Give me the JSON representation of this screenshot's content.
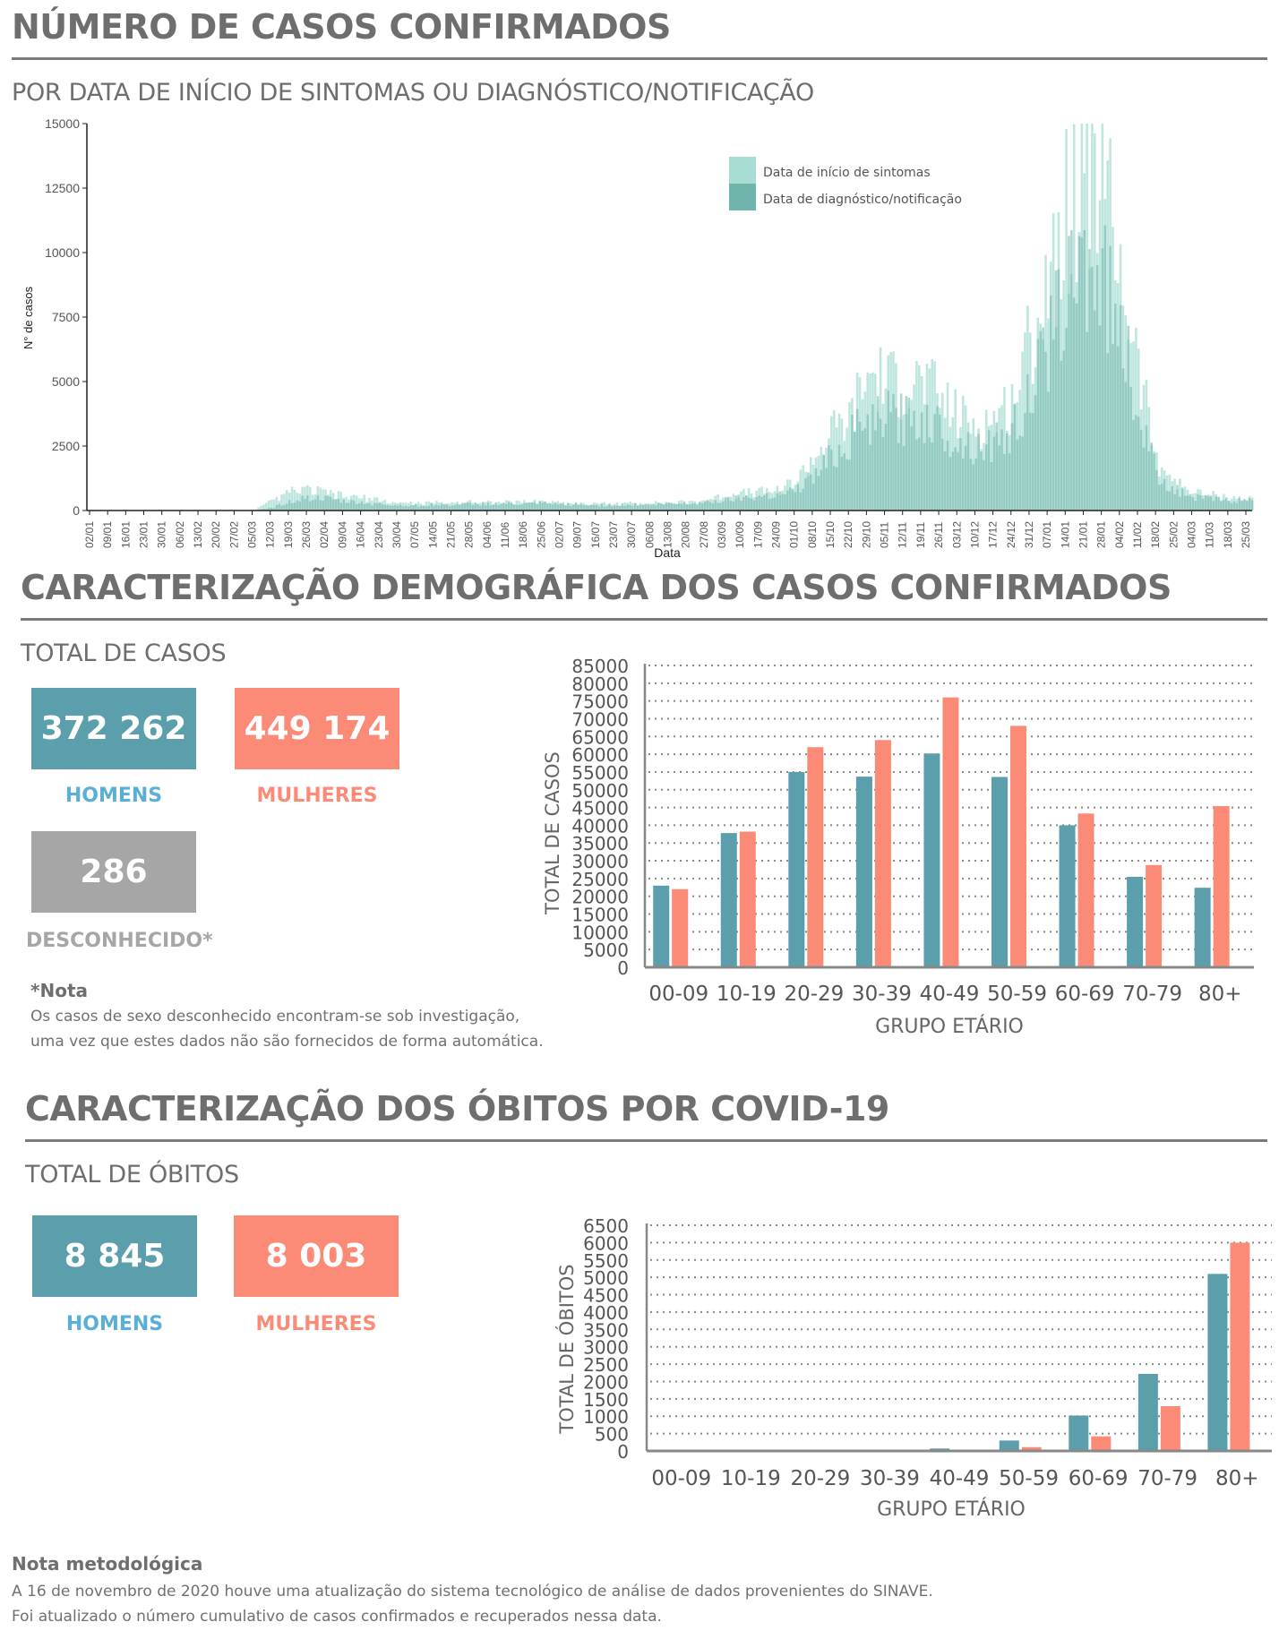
{
  "colors": {
    "men": "#5a9fab",
    "women": "#fb8a77",
    "unknown": "#a6a6a6",
    "men_label": "#5aafd6",
    "women_label": "#fb8a77",
    "symptom_onset": "#a8ddd4",
    "diagnosis": "#6fb5ab"
  },
  "section1": {
    "title": "NÚMERO DE CASOS CONFIRMADOS",
    "subtitle": "POR DATA DE INÍCIO DE SINTOMAS OU DIAGNÓSTICO/NOTIFICAÇÃO"
  },
  "section2": {
    "title": "CARACTERIZAÇÃO DEMOGRÁFICA DOS CASOS CONFIRMADOS",
    "subtitle": "TOTAL DE CASOS",
    "men_value": "372 262",
    "men_label": "HOMENS",
    "women_value": "449 174",
    "women_label": "MULHERES",
    "unknown_value": "286",
    "unknown_label": "DESCONHECIDO*",
    "note_title": "*Nota",
    "note_line1": "Os casos de sexo desconhecido encontram-se sob investigação,",
    "note_line2": "uma vez que estes dados não são fornecidos de forma automática."
  },
  "section3": {
    "title": "CARACTERIZAÇÃO DOS ÓBITOS POR COVID-19",
    "subtitle": "TOTAL DE ÓBITOS",
    "men_value": "8 845",
    "men_label": "HOMENS",
    "women_value": "8 003",
    "women_label": "MULHERES"
  },
  "footer": {
    "title": "Nota metodológica",
    "line1": "A 16 de novembro de 2020 houve uma atualização do sistema tecnológico de análise de dados provenientes do SINAVE.",
    "line2": "Foi atualizado o número cumulativo de casos confirmados e recuperados nessa data."
  },
  "chart_data": [
    {
      "type": "bar",
      "title": "",
      "xlabel": "Data",
      "ylabel": "N° de casos",
      "ylim": [
        0,
        15000
      ],
      "yticks": [
        0,
        2500,
        5000,
        7500,
        10000,
        12500,
        15000
      ],
      "grid": false,
      "legend_position": "top-right",
      "x_tick_labels": [
        "02/01",
        "09/01",
        "16/01",
        "23/01",
        "30/01",
        "06/02",
        "13/02",
        "20/02",
        "27/02",
        "05/03",
        "12/03",
        "19/03",
        "26/03",
        "02/04",
        "09/04",
        "16/04",
        "23/04",
        "30/04",
        "07/05",
        "14/05",
        "21/05",
        "28/05",
        "04/06",
        "11/06",
        "18/06",
        "25/06",
        "02/07",
        "09/07",
        "16/07",
        "23/07",
        "30/07",
        "06/08",
        "13/08",
        "20/08",
        "27/08",
        "03/09",
        "10/09",
        "17/09",
        "24/09",
        "01/10",
        "08/10",
        "15/10",
        "22/10",
        "29/10",
        "05/11",
        "12/11",
        "19/11",
        "26/11",
        "03/12",
        "10/12",
        "17/12",
        "24/12",
        "31/12",
        "07/01",
        "14/01",
        "21/01",
        "28/01",
        "04/02",
        "11/02",
        "18/02",
        "25/02",
        "04/03",
        "11/03",
        "18/03",
        "25/03"
      ],
      "weekly_approx_x": [
        "02/01",
        "09/01",
        "16/01",
        "23/01",
        "30/01",
        "06/02",
        "13/02",
        "20/02",
        "27/02",
        "05/03",
        "12/03",
        "19/03",
        "26/03",
        "02/04",
        "09/04",
        "16/04",
        "23/04",
        "30/04",
        "07/05",
        "14/05",
        "21/05",
        "28/05",
        "04/06",
        "11/06",
        "18/06",
        "25/06",
        "02/07",
        "09/07",
        "16/07",
        "23/07",
        "30/07",
        "06/08",
        "13/08",
        "20/08",
        "27/08",
        "03/09",
        "10/09",
        "17/09",
        "24/09",
        "01/10",
        "08/10",
        "15/10",
        "22/10",
        "29/10",
        "05/11",
        "12/11",
        "19/11",
        "26/11",
        "03/12",
        "10/12",
        "17/12",
        "24/12",
        "31/12",
        "07/01",
        "14/01",
        "21/01",
        "28/01",
        "04/02",
        "11/02",
        "18/02",
        "25/02",
        "04/03",
        "11/03",
        "18/03",
        "25/03"
      ],
      "series": [
        {
          "name": "Data de início de sintomas",
          "values": [
            0,
            0,
            0,
            0,
            0,
            0,
            0,
            0,
            0,
            0,
            350,
            700,
            800,
            700,
            550,
            500,
            380,
            300,
            280,
            300,
            300,
            320,
            330,
            320,
            330,
            360,
            300,
            280,
            250,
            260,
            280,
            280,
            300,
            320,
            400,
            550,
            650,
            700,
            800,
            1100,
            2000,
            3000,
            3500,
            5200,
            5000,
            4800,
            5000,
            4300,
            3600,
            3300,
            3500,
            4200,
            6500,
            9000,
            11500,
            13500,
            12500,
            9500,
            5500,
            2000,
            1100,
            700,
            600,
            500,
            450
          ]
        },
        {
          "name": "Data de diagnóstico/notificação",
          "values": [
            0,
            0,
            0,
            0,
            0,
            0,
            0,
            0,
            0,
            0,
            100,
            350,
            500,
            450,
            350,
            300,
            250,
            200,
            200,
            220,
            220,
            250,
            260,
            250,
            250,
            280,
            240,
            220,
            200,
            220,
            220,
            240,
            260,
            280,
            320,
            420,
            520,
            580,
            650,
            800,
            1300,
            2200,
            2800,
            3600,
            3600,
            3500,
            3600,
            3200,
            2600,
            2500,
            2600,
            3000,
            4500,
            6500,
            8500,
            9800,
            9000,
            7000,
            3800,
            1400,
            800,
            550,
            450,
            400,
            380
          ]
        }
      ]
    },
    {
      "type": "bar",
      "title": "",
      "xlabel": "GRUPO ETÁRIO",
      "ylabel": "TOTAL DE CASOS",
      "ylim": [
        0,
        85000
      ],
      "yticks": [
        0,
        5000,
        10000,
        15000,
        20000,
        25000,
        30000,
        35000,
        40000,
        45000,
        50000,
        55000,
        60000,
        65000,
        70000,
        75000,
        80000,
        85000
      ],
      "grid": true,
      "categories": [
        "00-09",
        "10-19",
        "20-29",
        "30-39",
        "40-49",
        "50-59",
        "60-69",
        "70-79",
        "80+"
      ],
      "series": [
        {
          "name": "Homens",
          "values": [
            23000,
            37800,
            55000,
            53700,
            60200,
            53600,
            40000,
            25500,
            22400
          ]
        },
        {
          "name": "Mulheres",
          "values": [
            22000,
            38200,
            62000,
            64000,
            76000,
            68000,
            43300,
            28800,
            45400
          ]
        }
      ]
    },
    {
      "type": "bar",
      "title": "",
      "xlabel": "GRUPO ETÁRIO",
      "ylabel": "TOTAL DE ÓBITOS",
      "ylim": [
        0,
        6500
      ],
      "yticks": [
        0,
        500,
        1000,
        1500,
        2000,
        2500,
        3000,
        3500,
        4000,
        4500,
        5000,
        5500,
        6000,
        6500
      ],
      "grid": true,
      "categories": [
        "00-09",
        "10-19",
        "20-29",
        "30-39",
        "40-49",
        "50-59",
        "60-69",
        "70-79",
        "80+"
      ],
      "series": [
        {
          "name": "Homens",
          "values": [
            0,
            2,
            5,
            15,
            70,
            300,
            1020,
            2220,
            5100
          ]
        },
        {
          "name": "Mulheres",
          "values": [
            0,
            0,
            3,
            8,
            30,
            110,
            420,
            1290,
            6000
          ]
        }
      ]
    }
  ]
}
